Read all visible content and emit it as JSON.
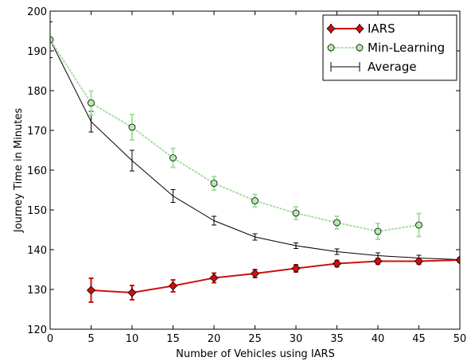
{
  "chart_data": {
    "type": "line",
    "title": "",
    "xlabel": "Number of Vehicles using IARS",
    "ylabel": "Journey Time in Minutes",
    "xlim": [
      0,
      50
    ],
    "ylim": [
      120,
      200
    ],
    "xticks": [
      0,
      5,
      10,
      15,
      20,
      25,
      30,
      35,
      40,
      45,
      50
    ],
    "yticks": [
      120,
      130,
      140,
      150,
      160,
      170,
      180,
      190,
      200
    ],
    "grid": false,
    "legend_position": "top-right",
    "series": [
      {
        "name": "IARS",
        "color": "#cc1111",
        "marker": "diamond",
        "line_style": "solid",
        "points": [
          {
            "x": 5,
            "y": 129.8,
            "err": 3.0
          },
          {
            "x": 10,
            "y": 129.2,
            "err": 1.8
          },
          {
            "x": 15,
            "y": 130.9,
            "err": 1.5
          },
          {
            "x": 20,
            "y": 132.9,
            "err": 1.2
          },
          {
            "x": 25,
            "y": 134.0,
            "err": 1.0
          },
          {
            "x": 30,
            "y": 135.3,
            "err": 0.9
          },
          {
            "x": 35,
            "y": 136.5,
            "err": 0.8
          },
          {
            "x": 40,
            "y": 137.1,
            "err": 0.7
          },
          {
            "x": 45,
            "y": 137.1,
            "err": 0.7
          },
          {
            "x": 50,
            "y": 137.4,
            "err": 0.6
          }
        ]
      },
      {
        "name": "Min-Learning",
        "color": "#a6e0a0",
        "marker_fill": "#b8eab0",
        "marker": "circle",
        "line_style": "dotted",
        "points": [
          {
            "x": 0,
            "y": 192.8,
            "err": 0.0
          },
          {
            "x": 5,
            "y": 176.9,
            "err": 3.0
          },
          {
            "x": 10,
            "y": 170.8,
            "err": 3.2
          },
          {
            "x": 15,
            "y": 163.1,
            "err": 2.4
          },
          {
            "x": 20,
            "y": 156.7,
            "err": 1.7
          },
          {
            "x": 25,
            "y": 152.3,
            "err": 1.6
          },
          {
            "x": 30,
            "y": 149.2,
            "err": 1.6
          },
          {
            "x": 35,
            "y": 146.8,
            "err": 1.6
          },
          {
            "x": 40,
            "y": 144.6,
            "err": 2.0
          },
          {
            "x": 45,
            "y": 146.2,
            "err": 2.9
          }
        ]
      },
      {
        "name": "Average",
        "color": "#000000",
        "marker": "none",
        "line_style": "solid",
        "points": [
          {
            "x": 0,
            "y": 192.8,
            "err": 4.5
          },
          {
            "x": 5,
            "y": 172.2,
            "err": 2.6
          },
          {
            "x": 10,
            "y": 162.4,
            "err": 2.6
          },
          {
            "x": 15,
            "y": 153.5,
            "err": 1.6
          },
          {
            "x": 20,
            "y": 147.3,
            "err": 1.1
          },
          {
            "x": 25,
            "y": 143.2,
            "err": 0.8
          },
          {
            "x": 30,
            "y": 141.0,
            "err": 0.7
          },
          {
            "x": 35,
            "y": 139.5,
            "err": 0.7
          },
          {
            "x": 40,
            "y": 138.5,
            "err": 0.7
          },
          {
            "x": 45,
            "y": 137.9,
            "err": 0.7
          },
          {
            "x": 50,
            "y": 137.5,
            "err": 0.5
          }
        ]
      }
    ]
  }
}
